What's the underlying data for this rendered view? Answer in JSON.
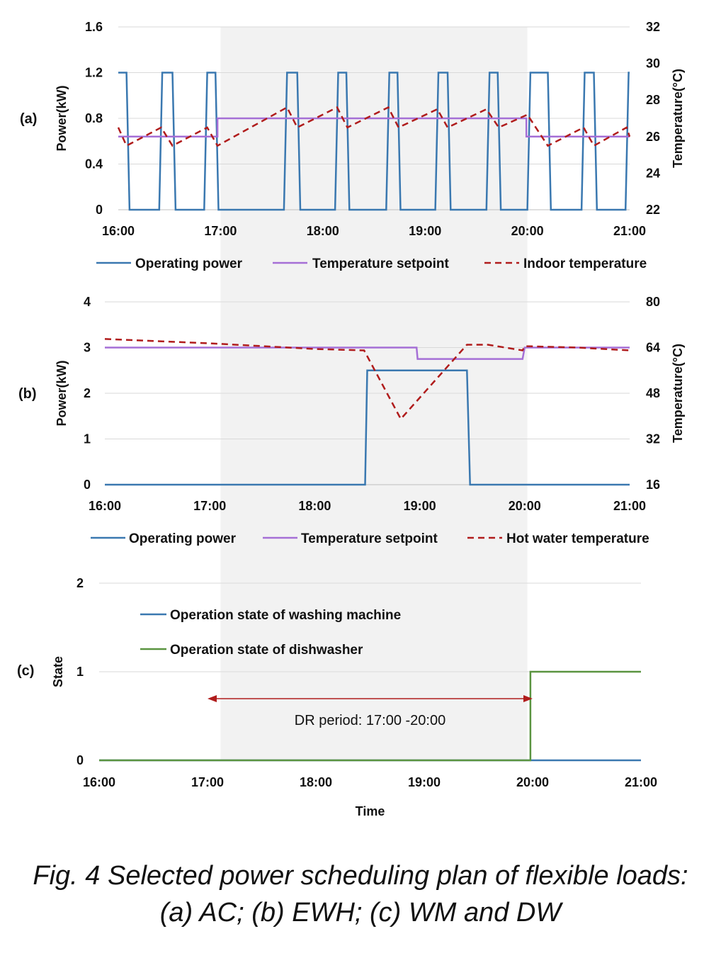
{
  "figure": {
    "caption_line1": "Fig. 4 Selected power scheduling plan of flexible loads:",
    "caption_line2": "(a) AC; (b) EWH; (c) WM and DW",
    "dr_label": "DR period: 17:00 -20:00",
    "dr_period": [
      17,
      20
    ],
    "colors": {
      "power": "#3a78b0",
      "setpoint": "#a56fd6",
      "temperature": "#b01c1c",
      "dishwasher": "#5a9440",
      "dr_shade": "#f2f2f2",
      "grid": "#d9d9d9"
    }
  },
  "chart_data": [
    {
      "panel": "(a)",
      "type": "line",
      "x_ticks": [
        "16:00",
        "17:00",
        "18:00",
        "19:00",
        "20:00",
        "21:00"
      ],
      "xlim": [
        16,
        21
      ],
      "ylabel": "Power(kW)",
      "ylim": [
        0,
        1.6
      ],
      "y_ticks": [
        "0",
        "0.4",
        "0.8",
        "1.2",
        "1.6"
      ],
      "y2label": "Temperature(°C)",
      "y2lim": [
        22,
        32
      ],
      "y2_ticks": [
        "22",
        "24",
        "26",
        "28",
        "30",
        "32"
      ],
      "grid": true,
      "legend_position": "bottom",
      "series": [
        {
          "name": "Operating power",
          "axis": "left",
          "style": "solid",
          "color": "#3a78b0",
          "x": [
            16,
            16.08,
            16.11,
            16.4,
            16.43,
            16.53,
            16.56,
            16.84,
            16.87,
            16.95,
            16.98,
            17.62,
            17.65,
            17.75,
            17.78,
            18.12,
            18.15,
            18.23,
            18.26,
            18.62,
            18.65,
            18.73,
            18.76,
            19.1,
            19.13,
            19.22,
            19.25,
            19.6,
            19.63,
            19.71,
            19.74,
            20.0,
            20.03,
            20.2,
            20.23,
            20.53,
            20.56,
            20.65,
            20.68,
            20.96,
            20.99,
            21.0
          ],
          "y": [
            1.2,
            1.2,
            0,
            0,
            1.2,
            1.2,
            0,
            0,
            1.2,
            1.2,
            0,
            0,
            1.2,
            1.2,
            0,
            0,
            1.2,
            1.2,
            0,
            0,
            1.2,
            1.2,
            0,
            0,
            1.2,
            1.2,
            0,
            0,
            1.2,
            1.2,
            0,
            0,
            1.2,
            1.2,
            0,
            0,
            1.2,
            1.2,
            0,
            0,
            1.2,
            1.2
          ]
        },
        {
          "name": "Temperature setpoint",
          "axis": "right",
          "style": "solid",
          "color": "#a56fd6",
          "x": [
            16,
            16.97,
            16.97,
            19.99,
            19.99,
            21
          ],
          "y": [
            26.0,
            26.0,
            27.0,
            27.0,
            26.0,
            26.0
          ]
        },
        {
          "name": "Indoor temperature",
          "axis": "right",
          "style": "dashed",
          "color": "#b01c1c",
          "x": [
            16,
            16.08,
            16.42,
            16.53,
            16.87,
            16.97,
            17.65,
            17.75,
            18.14,
            18.24,
            18.64,
            18.74,
            19.12,
            19.22,
            19.6,
            19.72,
            20.0,
            20.2,
            20.55,
            20.65,
            20.97,
            21.0
          ],
          "y": [
            26.5,
            25.5,
            26.5,
            25.5,
            26.5,
            25.5,
            27.6,
            26.5,
            27.6,
            26.5,
            27.6,
            26.5,
            27.5,
            26.5,
            27.5,
            26.5,
            27.2,
            25.5,
            26.5,
            25.5,
            26.5,
            26.0
          ]
        }
      ]
    },
    {
      "panel": "(b)",
      "type": "line",
      "x_ticks": [
        "16:00",
        "17:00",
        "18:00",
        "19:00",
        "20:00",
        "21:00"
      ],
      "xlim": [
        16,
        21
      ],
      "ylabel": "Power(kW)",
      "ylim": [
        0,
        4
      ],
      "y_ticks": [
        "0",
        "1",
        "2",
        "3",
        "4"
      ],
      "y2label": "Temperature(°C)",
      "y2lim": [
        16,
        80
      ],
      "y2_ticks": [
        "16",
        "32",
        "48",
        "64",
        "80"
      ],
      "grid": true,
      "legend_position": "bottom",
      "series": [
        {
          "name": "Operating power",
          "axis": "left",
          "style": "solid",
          "color": "#3a78b0",
          "x": [
            16,
            18.48,
            18.5,
            19.45,
            19.48,
            21
          ],
          "y": [
            0,
            0,
            2.5,
            2.5,
            0,
            0
          ]
        },
        {
          "name": "Temperature setpoint",
          "axis": "right",
          "style": "solid",
          "color": "#a56fd6",
          "x": [
            16,
            18.97,
            18.98,
            19.98,
            20.0,
            21
          ],
          "y": [
            64,
            64,
            60,
            60,
            64,
            64
          ]
        },
        {
          "name": "Hot water temperature",
          "axis": "right",
          "style": "dashed",
          "color": "#b01c1c",
          "x": [
            16,
            17.0,
            17.5,
            18.0,
            18.47,
            18.82,
            19.45,
            19.65,
            19.98,
            20.0,
            20.5,
            21.0
          ],
          "y": [
            67,
            65.5,
            64.5,
            63.5,
            63,
            39,
            65,
            65,
            63,
            64.5,
            64,
            63
          ]
        }
      ]
    },
    {
      "panel": "(c)",
      "type": "line",
      "x_ticks": [
        "16:00",
        "17:00",
        "18:00",
        "19:00",
        "20:00",
        "21:00"
      ],
      "xlim": [
        16,
        21
      ],
      "xlabel": "Time",
      "ylabel": "State",
      "ylim": [
        0,
        2
      ],
      "y_ticks": [
        "0",
        "1",
        "2"
      ],
      "grid": true,
      "legend_position": "top-left",
      "series": [
        {
          "name": "Operation state of washing machine",
          "axis": "left",
          "style": "solid",
          "color": "#3a78b0",
          "x": [
            16,
            21
          ],
          "y": [
            0,
            0
          ]
        },
        {
          "name": "Operation state of dishwasher",
          "axis": "left",
          "style": "solid",
          "color": "#5a9440",
          "x": [
            16,
            19.98,
            19.98,
            21
          ],
          "y": [
            0,
            0,
            1,
            1
          ]
        }
      ]
    }
  ]
}
